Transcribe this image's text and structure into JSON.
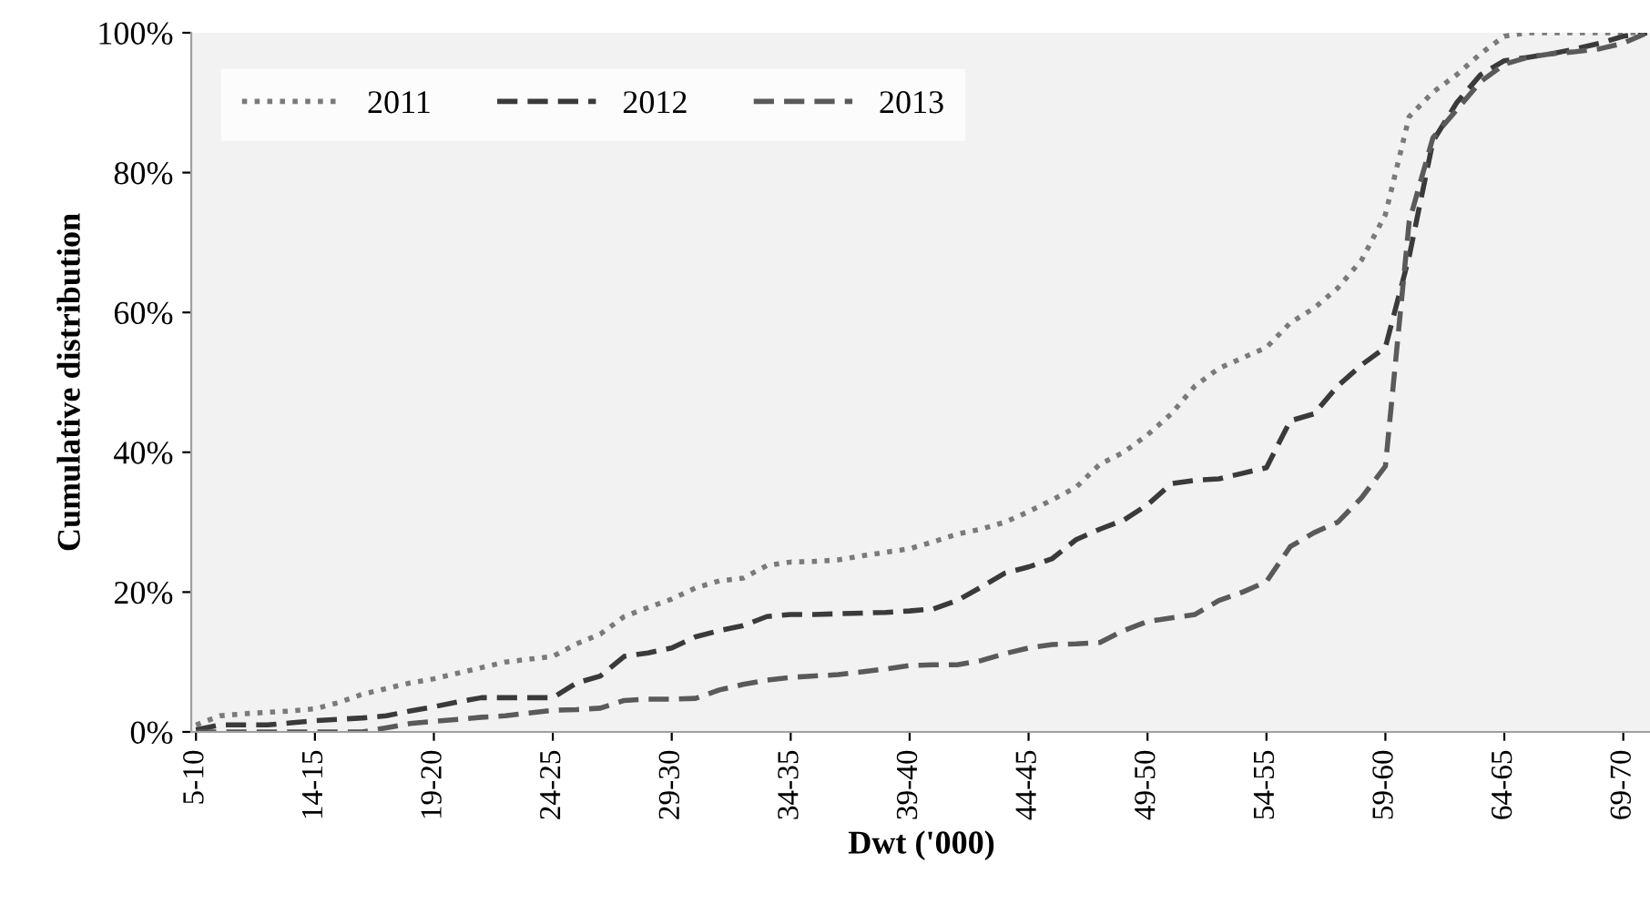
{
  "chart_data": {
    "type": "line",
    "xlabel": "Dwt ('000)",
    "ylabel": "Cumulative distribution",
    "categories": [
      "5-10",
      null,
      null,
      null,
      null,
      "14-15",
      null,
      null,
      null,
      null,
      "19-20",
      null,
      null,
      null,
      null,
      "24-25",
      null,
      null,
      null,
      null,
      "29-30",
      null,
      null,
      null,
      null,
      "34-35",
      null,
      null,
      null,
      null,
      "39-40",
      null,
      null,
      null,
      null,
      "44-45",
      null,
      null,
      null,
      null,
      "49-50",
      null,
      null,
      null,
      null,
      "54-55",
      null,
      null,
      null,
      null,
      "59-60",
      null,
      null,
      null,
      null,
      "64-65",
      null,
      null,
      null,
      null,
      "69-70",
      null
    ],
    "series": [
      {
        "name": "2011",
        "color": "#7a7a7a",
        "line_style": "dotted",
        "values": [
          1,
          2.3,
          2.6,
          2.8,
          3,
          3.3,
          4.2,
          5.4,
          6.2,
          7,
          7.6,
          8.4,
          9.2,
          10,
          10.4,
          10.8,
          12.6,
          14,
          16.5,
          17.8,
          19,
          20.6,
          21.6,
          22,
          23.8,
          24.3,
          24.4,
          24.6,
          25.2,
          25.7,
          26.2,
          27.2,
          28.3,
          29,
          30,
          31.5,
          33.2,
          35,
          38.3,
          40,
          42.5,
          45.5,
          49.5,
          52,
          53.5,
          55,
          58.5,
          60.6,
          63.5,
          67.5,
          74,
          88,
          91.5,
          94,
          97,
          99.5,
          100,
          100,
          100,
          100,
          100,
          100
        ]
      },
      {
        "name": "2012",
        "color": "#3a3a3a",
        "line_style": "dashed",
        "values": [
          0.3,
          1,
          1,
          1,
          1.3,
          1.6,
          1.8,
          2,
          2.3,
          3,
          3.6,
          4.3,
          4.9,
          4.9,
          4.9,
          4.9,
          7,
          8,
          10.8,
          11.3,
          12,
          13.6,
          14.5,
          15.2,
          16.5,
          16.8,
          16.8,
          16.9,
          17,
          17.1,
          17.3,
          17.6,
          18.8,
          20.7,
          22.7,
          23.6,
          24.8,
          27.5,
          29,
          30.3,
          32.5,
          35.5,
          36,
          36.2,
          37,
          37.8,
          44.5,
          45.5,
          49.5,
          52.5,
          55,
          68,
          84.5,
          90,
          94,
          96,
          96.5,
          97,
          97.7,
          98.5,
          99.5,
          100
        ]
      },
      {
        "name": "2013",
        "color": "#5a5a5a",
        "line_style": "dashed",
        "values": [
          0,
          0,
          0,
          0,
          0,
          0,
          0,
          0,
          0.6,
          1.2,
          1.5,
          1.8,
          2.1,
          2.3,
          2.7,
          3.1,
          3.2,
          3.4,
          4.5,
          4.7,
          4.7,
          4.8,
          6,
          6.8,
          7.4,
          7.8,
          8,
          8.2,
          8.6,
          9,
          9.5,
          9.6,
          9.6,
          10.2,
          11.2,
          12,
          12.5,
          12.6,
          12.8,
          14.5,
          15.8,
          16.3,
          16.8,
          18.8,
          20,
          21.5,
          26.5,
          28.5,
          30,
          33.5,
          38,
          73,
          85,
          89,
          93,
          95.5,
          96.5,
          97,
          97.3,
          97.7,
          98.5,
          100
        ]
      }
    ],
    "ylim": [
      0,
      100
    ],
    "yticks": [
      {
        "value": 0,
        "label": "0%"
      },
      {
        "value": 20,
        "label": "20%"
      },
      {
        "value": 40,
        "label": "40%"
      },
      {
        "value": 60,
        "label": "60%"
      },
      {
        "value": 80,
        "label": "80%"
      },
      {
        "value": 100,
        "label": "100%"
      }
    ],
    "grid": false,
    "legend": "top left",
    "marker": "none"
  }
}
